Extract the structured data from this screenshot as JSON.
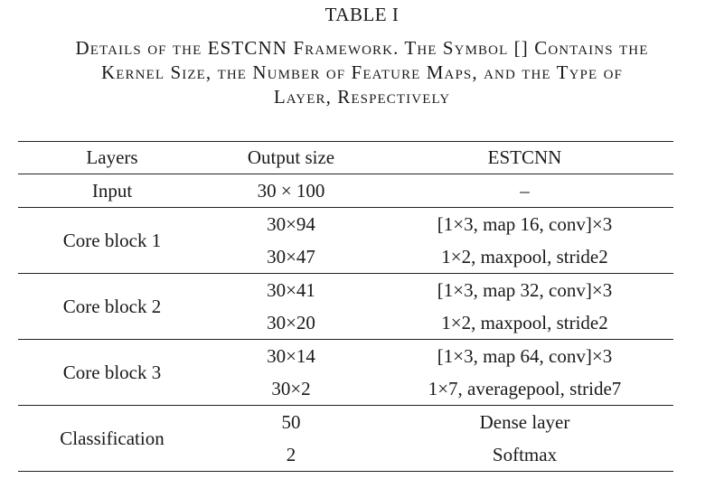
{
  "table_label": "TABLE I",
  "caption": {
    "line1": "Details of the ESTCNN Framework. The Symbol [] Contains the",
    "line2": "Kernel Size, the Number of Feature Maps, and the Type of",
    "line3": "Layer, Respectively"
  },
  "headers": {
    "layers": "Layers",
    "output_size": "Output size",
    "estcnn": "ESTCNN"
  },
  "rows": {
    "input": {
      "layer": "Input",
      "output": "30 × 100",
      "estcnn": "–"
    },
    "core1": {
      "layer": "Core block 1",
      "a": {
        "output": "30×94",
        "estcnn": "[1×3, map 16, conv]×3"
      },
      "b": {
        "output": "30×47",
        "estcnn": "1×2, maxpool, stride2"
      }
    },
    "core2": {
      "layer": "Core block 2",
      "a": {
        "output": "30×41",
        "estcnn": "[1×3, map 32, conv]×3"
      },
      "b": {
        "output": "30×20",
        "estcnn": "1×2, maxpool, stride2"
      }
    },
    "core3": {
      "layer": "Core block 3",
      "a": {
        "output": "30×14",
        "estcnn": "[1×3, map 64, conv]×3"
      },
      "b": {
        "output": "30×2",
        "estcnn": "1×7, averagepool, stride7"
      }
    },
    "classification": {
      "layer": "Classification",
      "a": {
        "output": "50",
        "estcnn": "Dense layer"
      },
      "b": {
        "output": "2",
        "estcnn": "Softmax"
      }
    }
  }
}
